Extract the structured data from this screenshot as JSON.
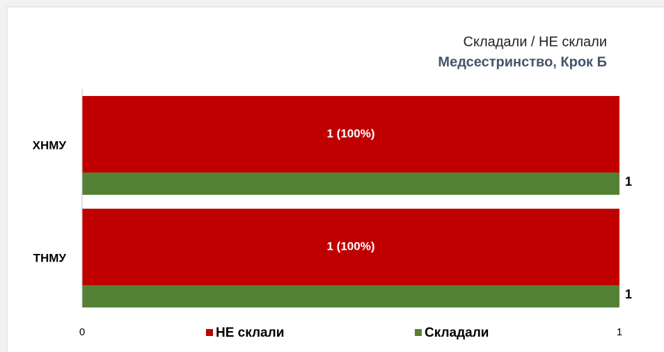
{
  "chart_data": {
    "type": "bar",
    "orientation": "horizontal",
    "title": "Складали / НЕ склали",
    "subtitle": "Медсестринство, Крок Б",
    "categories": [
      "ХНМУ",
      "ТНМУ"
    ],
    "series": [
      {
        "name": "НЕ склали",
        "color": "#c00000",
        "values": [
          1,
          1
        ],
        "value_labels": [
          "1 (100%)",
          "1 (100%)"
        ]
      },
      {
        "name": "Складали",
        "color": "#548235",
        "values": [
          1,
          1
        ]
      }
    ],
    "xlim": [
      0,
      1
    ],
    "xticks": [
      0,
      1
    ],
    "legend": "bottom"
  }
}
